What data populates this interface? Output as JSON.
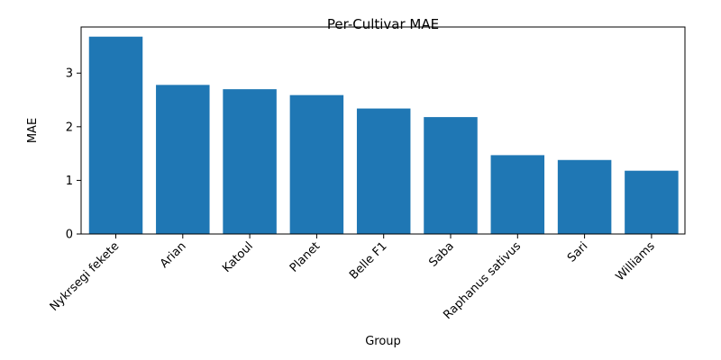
{
  "chart_data": {
    "type": "bar",
    "title": "Per-Cultivar MAE",
    "xlabel": "Group",
    "ylabel": "MAE",
    "categories": [
      "Nykrsegi fekete",
      "Arian",
      "Katoul",
      "Planet",
      "Belle F1",
      "Saba",
      "Raphanus sativus",
      "Sari",
      "Williams"
    ],
    "values": [
      3.68,
      2.78,
      2.7,
      2.59,
      2.34,
      2.18,
      1.47,
      1.38,
      1.18
    ],
    "ylim": [
      0,
      3.86
    ],
    "yticks": [
      "0",
      "1",
      "2",
      "3"
    ],
    "bar_color": "#1f77b4",
    "grid": false,
    "legend": "none"
  }
}
